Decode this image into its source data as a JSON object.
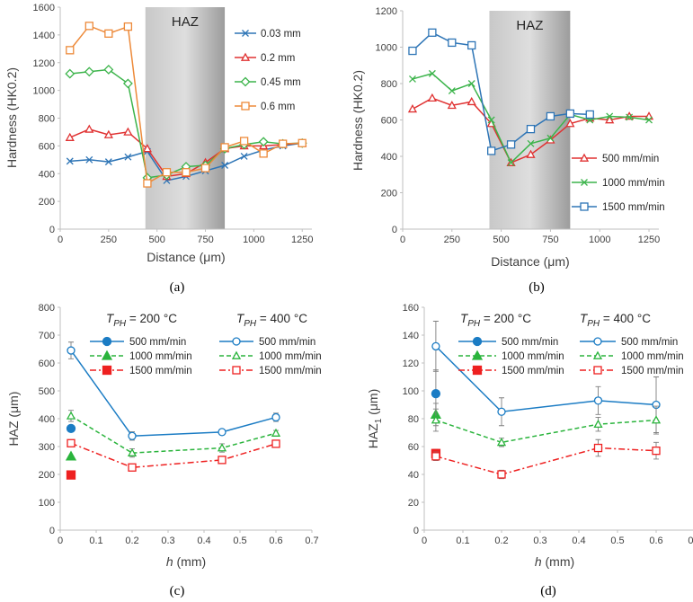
{
  "colors": {
    "blue": "#2e75b6",
    "blue_c": "#1b7cc4",
    "red": "#e03232",
    "red_c": "#ee2020",
    "green": "#3cb44b",
    "green_c": "#2ab43c",
    "orange": "#ed8a3a",
    "haz_band": "#b4b4b4"
  },
  "chart_data": [
    {
      "id": "a",
      "panel_label": "(a)",
      "type": "line",
      "xlabel": "Distance (μm)",
      "ylabel": "Hardness (HK0.2)",
      "xlim": [
        0,
        1300
      ],
      "ylim": [
        0,
        1600
      ],
      "xticks": [
        0,
        250,
        500,
        750,
        1000,
        1250
      ],
      "yticks": [
        0,
        200,
        400,
        600,
        800,
        1000,
        1200,
        1400,
        1600
      ],
      "haz": {
        "label": "HAZ",
        "x_start": 440,
        "x_end": 850
      },
      "legend_position": "top-right",
      "series": [
        {
          "name": "0.03 mm",
          "color_key": "blue",
          "marker": "x",
          "x": [
            50,
            150,
            250,
            350,
            450,
            550,
            650,
            750,
            850,
            950,
            1050,
            1150,
            1250
          ],
          "y": [
            490,
            500,
            485,
            520,
            560,
            350,
            380,
            420,
            460,
            525,
            570,
            600,
            620
          ]
        },
        {
          "name": "0.2 mm",
          "color_key": "red",
          "marker": "triangle",
          "x": [
            50,
            150,
            250,
            350,
            450,
            550,
            650,
            750,
            850,
            950,
            1050,
            1150,
            1250
          ],
          "y": [
            660,
            720,
            680,
            700,
            580,
            380,
            400,
            480,
            580,
            600,
            600,
            610,
            620
          ]
        },
        {
          "name": "0.45 mm",
          "color_key": "green",
          "marker": "diamond",
          "x": [
            50,
            150,
            250,
            350,
            450,
            550,
            650,
            750,
            850,
            950,
            1050,
            1150,
            1250
          ],
          "y": [
            1120,
            1135,
            1150,
            1050,
            370,
            390,
            450,
            460,
            580,
            610,
            630,
            615,
            620
          ]
        },
        {
          "name": "0.6 mm",
          "color_key": "orange",
          "marker": "square",
          "x": [
            50,
            150,
            250,
            350,
            450,
            550,
            650,
            750,
            850,
            950,
            1050,
            1150,
            1250
          ],
          "y": [
            1290,
            1465,
            1410,
            1460,
            330,
            410,
            410,
            440,
            590,
            635,
            545,
            615,
            620
          ]
        }
      ]
    },
    {
      "id": "b",
      "panel_label": "(b)",
      "type": "line",
      "xlabel": "Distance (μm)",
      "ylabel": "Hardness (HK0.2)",
      "xlim": [
        0,
        1300
      ],
      "ylim": [
        0,
        1200
      ],
      "xticks": [
        0,
        250,
        500,
        750,
        1000,
        1250
      ],
      "yticks": [
        0,
        200,
        400,
        600,
        800,
        1000,
        1200
      ],
      "haz": {
        "label": "HAZ",
        "x_start": 440,
        "x_end": 850
      },
      "legend_position": "bottom-right",
      "series": [
        {
          "name": "500 mm/min",
          "color_key": "red",
          "marker": "triangle",
          "x": [
            50,
            150,
            250,
            350,
            450,
            550,
            650,
            750,
            850,
            950,
            1050,
            1150,
            1250
          ],
          "y": [
            660,
            720,
            680,
            700,
            580,
            365,
            410,
            490,
            580,
            610,
            600,
            620,
            620
          ]
        },
        {
          "name": "1000 mm/min",
          "color_key": "green",
          "marker": "x",
          "x": [
            50,
            150,
            250,
            350,
            450,
            550,
            650,
            750,
            850,
            950,
            1050,
            1150,
            1250
          ],
          "y": [
            825,
            855,
            760,
            800,
            600,
            365,
            470,
            500,
            630,
            600,
            620,
            615,
            600
          ]
        },
        {
          "name": "1500 mm/min",
          "color_key": "blue",
          "marker": "square",
          "x": [
            50,
            150,
            250,
            350,
            450,
            550,
            650,
            750,
            850,
            950
          ],
          "y": [
            980,
            1080,
            1025,
            1010,
            430,
            465,
            550,
            620,
            635,
            630
          ]
        }
      ]
    },
    {
      "id": "c",
      "panel_label": "(c)",
      "type": "line",
      "xlabel": "h (mm)",
      "ylabel": "HAZ (μm)",
      "xlim": [
        0,
        0.7
      ],
      "ylim": [
        0,
        800
      ],
      "xticks": [
        0,
        0.1,
        0.2,
        0.3,
        0.4,
        0.5,
        0.6,
        0.7
      ],
      "yticks": [
        0,
        100,
        200,
        300,
        400,
        500,
        600,
        700,
        800
      ],
      "legend_position": "top-right",
      "legend_titles": [
        "T",
        "PH",
        " = 200 °C",
        "T",
        "PH",
        " = 400 °C"
      ],
      "series": [
        {
          "name": "500 mm/min",
          "group": "200 °C",
          "color_key": "blue_c",
          "marker": "circle",
          "filled": true,
          "dash": "solid",
          "x": [
            0.03
          ],
          "y": [
            365
          ],
          "err": [
            0
          ]
        },
        {
          "name": "1000 mm/min",
          "group": "200 °C",
          "color_key": "green_c",
          "marker": "triangle",
          "filled": true,
          "dash": "dash",
          "x": [
            0.03
          ],
          "y": [
            265
          ],
          "err": [
            0
          ]
        },
        {
          "name": "1500 mm/min",
          "group": "200 °C",
          "color_key": "red_c",
          "marker": "square",
          "filled": true,
          "dash": "dashdot",
          "x": [
            0.03
          ],
          "y": [
            198
          ],
          "err": [
            0
          ]
        },
        {
          "name": "500 mm/min",
          "group": "400 °C",
          "color_key": "blue_c",
          "marker": "circle",
          "filled": false,
          "dash": "solid",
          "x": [
            0.03,
            0.2,
            0.45,
            0.6
          ],
          "y": [
            645,
            338,
            352,
            405
          ],
          "err": [
            30,
            15,
            10,
            15
          ]
        },
        {
          "name": "1000 mm/min",
          "group": "400 °C",
          "color_key": "green_c",
          "marker": "triangle",
          "filled": false,
          "dash": "dash",
          "x": [
            0.03,
            0.2,
            0.45,
            0.6
          ],
          "y": [
            410,
            277,
            295,
            348
          ],
          "err": [
            20,
            15,
            15,
            10
          ]
        },
        {
          "name": "1500 mm/min",
          "group": "400 °C",
          "color_key": "red_c",
          "marker": "square",
          "filled": false,
          "dash": "dashdot",
          "x": [
            0.03,
            0.2,
            0.45,
            0.6
          ],
          "y": [
            312,
            225,
            252,
            310
          ],
          "err": [
            10,
            8,
            10,
            10
          ]
        }
      ]
    },
    {
      "id": "d",
      "panel_label": "(d)",
      "type": "line",
      "xlabel": "h (mm)",
      "ylabel": "HAZ1 (μm)",
      "xlim": [
        0,
        0.7
      ],
      "ylim": [
        0,
        160
      ],
      "xticks": [
        0,
        0.1,
        0.2,
        0.3,
        0.4,
        0.5,
        0.6,
        0.7
      ],
      "yticks": [
        0,
        20,
        40,
        60,
        80,
        100,
        120,
        140,
        160
      ],
      "legend_position": "top-right",
      "legend_titles": [
        "T",
        "PH",
        " = 200 °C",
        "T",
        "PH",
        " = 400 °C"
      ],
      "series": [
        {
          "name": "500 mm/min",
          "group": "200 °C",
          "color_key": "blue_c",
          "marker": "circle",
          "filled": true,
          "dash": "solid",
          "x": [
            0.03
          ],
          "y": [
            98
          ],
          "err": [
            17
          ]
        },
        {
          "name": "1000 mm/min",
          "group": "200 °C",
          "color_key": "green_c",
          "marker": "triangle",
          "filled": true,
          "dash": "dash",
          "x": [
            0.03
          ],
          "y": [
            83
          ],
          "err": [
            8
          ]
        },
        {
          "name": "1500 mm/min",
          "group": "200 °C",
          "color_key": "red_c",
          "marker": "square",
          "filled": true,
          "dash": "dashdot",
          "x": [
            0.03
          ],
          "y": [
            55
          ],
          "err": [
            3
          ]
        },
        {
          "name": "500 mm/min",
          "group": "400 °C",
          "color_key": "blue_c",
          "marker": "circle",
          "filled": false,
          "dash": "solid",
          "x": [
            0.03,
            0.2,
            0.45,
            0.6
          ],
          "y": [
            132,
            85,
            93,
            90
          ],
          "err": [
            18,
            10,
            10,
            20
          ]
        },
        {
          "name": "1000 mm/min",
          "group": "400 °C",
          "color_key": "green_c",
          "marker": "triangle",
          "filled": false,
          "dash": "dash",
          "x": [
            0.03,
            0.2,
            0.45,
            0.6
          ],
          "y": [
            79,
            63,
            76,
            79
          ],
          "err": [
            8,
            3,
            5,
            10
          ]
        },
        {
          "name": "1500 mm/min",
          "group": "400 °C",
          "color_key": "red_c",
          "marker": "square",
          "filled": false,
          "dash": "dashdot",
          "x": [
            0.03,
            0.2,
            0.45,
            0.6
          ],
          "y": [
            53,
            40,
            59,
            57
          ],
          "err": [
            3,
            3,
            6,
            6
          ]
        }
      ]
    }
  ]
}
